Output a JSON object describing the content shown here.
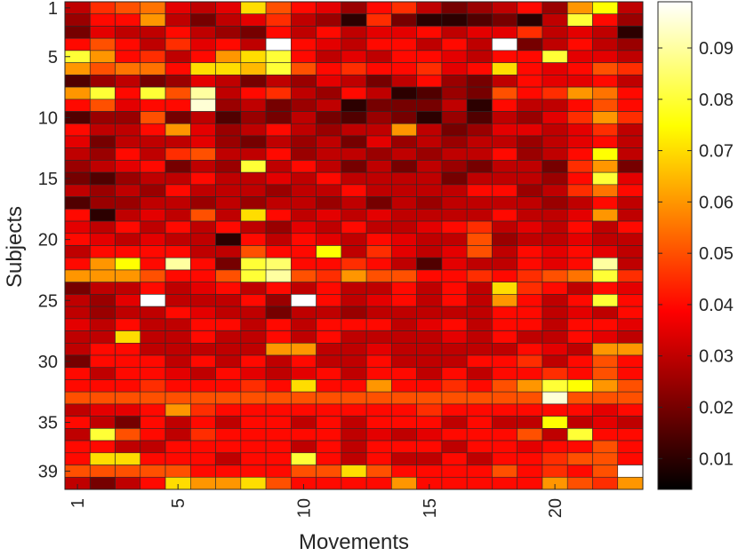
{
  "chart_data": {
    "type": "heatmap",
    "xlabel": "Movements",
    "ylabel": "Subjects",
    "x_ticks": [
      1,
      5,
      10,
      15,
      20
    ],
    "y_ticks": [
      1,
      5,
      10,
      15,
      20,
      25,
      30,
      35,
      39
    ],
    "n_cols": 23,
    "n_rows": 40,
    "colormap": "hot",
    "clim": [
      0.004,
      0.099
    ],
    "colorbar_ticks": [
      0.01,
      0.02,
      0.03,
      0.04,
      0.05,
      0.06,
      0.07,
      0.08,
      0.09
    ],
    "values": [
      [
        0.03,
        0.045,
        0.05,
        0.055,
        0.035,
        0.03,
        0.035,
        0.07,
        0.05,
        0.04,
        0.035,
        0.025,
        0.04,
        0.045,
        0.03,
        0.02,
        0.025,
        0.03,
        0.04,
        0.025,
        0.06,
        0.075,
        0.03
      ],
      [
        0.025,
        0.04,
        0.04,
        0.06,
        0.03,
        0.02,
        0.03,
        0.035,
        0.045,
        0.03,
        0.025,
        0.01,
        0.045,
        0.02,
        0.01,
        0.01,
        0.015,
        0.02,
        0.01,
        0.03,
        0.08,
        0.04,
        0.025
      ],
      [
        0.02,
        0.035,
        0.03,
        0.03,
        0.04,
        0.03,
        0.025,
        0.02,
        0.04,
        0.03,
        0.04,
        0.03,
        0.035,
        0.035,
        0.04,
        0.03,
        0.035,
        0.035,
        0.045,
        0.03,
        0.035,
        0.03,
        0.01
      ],
      [
        0.04,
        0.05,
        0.04,
        0.03,
        0.045,
        0.035,
        0.04,
        0.03,
        0.099,
        0.04,
        0.035,
        0.03,
        0.04,
        0.04,
        0.03,
        0.04,
        0.03,
        0.099,
        0.02,
        0.03,
        0.04,
        0.03,
        0.025
      ],
      [
        0.08,
        0.06,
        0.04,
        0.045,
        0.03,
        0.04,
        0.06,
        0.07,
        0.08,
        0.04,
        0.03,
        0.035,
        0.03,
        0.04,
        0.04,
        0.035,
        0.03,
        0.04,
        0.04,
        0.08,
        0.035,
        0.035,
        0.03
      ],
      [
        0.06,
        0.05,
        0.055,
        0.055,
        0.04,
        0.07,
        0.07,
        0.065,
        0.08,
        0.05,
        0.04,
        0.045,
        0.04,
        0.04,
        0.045,
        0.035,
        0.04,
        0.07,
        0.04,
        0.035,
        0.04,
        0.05,
        0.045
      ],
      [
        0.015,
        0.025,
        0.03,
        0.02,
        0.025,
        0.035,
        0.03,
        0.02,
        0.03,
        0.025,
        0.035,
        0.03,
        0.02,
        0.03,
        0.04,
        0.025,
        0.02,
        0.03,
        0.04,
        0.035,
        0.035,
        0.04,
        0.03
      ],
      [
        0.06,
        0.08,
        0.04,
        0.08,
        0.05,
        0.09,
        0.03,
        0.04,
        0.045,
        0.03,
        0.025,
        0.04,
        0.03,
        0.01,
        0.015,
        0.025,
        0.02,
        0.05,
        0.04,
        0.045,
        0.06,
        0.055,
        0.04
      ],
      [
        0.04,
        0.05,
        0.035,
        0.04,
        0.04,
        0.095,
        0.025,
        0.03,
        0.02,
        0.025,
        0.03,
        0.01,
        0.02,
        0.02,
        0.02,
        0.03,
        0.01,
        0.04,
        0.03,
        0.03,
        0.04,
        0.05,
        0.04
      ],
      [
        0.015,
        0.025,
        0.025,
        0.05,
        0.02,
        0.03,
        0.015,
        0.025,
        0.02,
        0.03,
        0.02,
        0.015,
        0.025,
        0.02,
        0.01,
        0.025,
        0.015,
        0.03,
        0.025,
        0.035,
        0.045,
        0.06,
        0.045
      ],
      [
        0.04,
        0.03,
        0.03,
        0.04,
        0.06,
        0.035,
        0.025,
        0.03,
        0.04,
        0.03,
        0.025,
        0.03,
        0.03,
        0.06,
        0.03,
        0.02,
        0.025,
        0.035,
        0.035,
        0.03,
        0.035,
        0.045,
        0.03
      ],
      [
        0.035,
        0.02,
        0.03,
        0.03,
        0.03,
        0.035,
        0.025,
        0.02,
        0.03,
        0.025,
        0.03,
        0.02,
        0.035,
        0.025,
        0.03,
        0.025,
        0.03,
        0.03,
        0.025,
        0.03,
        0.035,
        0.04,
        0.03
      ],
      [
        0.03,
        0.025,
        0.04,
        0.03,
        0.045,
        0.05,
        0.03,
        0.03,
        0.04,
        0.025,
        0.03,
        0.03,
        0.025,
        0.03,
        0.025,
        0.03,
        0.03,
        0.04,
        0.025,
        0.03,
        0.04,
        0.075,
        0.03
      ],
      [
        0.025,
        0.03,
        0.035,
        0.04,
        0.02,
        0.03,
        0.025,
        0.08,
        0.03,
        0.04,
        0.03,
        0.02,
        0.03,
        0.02,
        0.03,
        0.025,
        0.02,
        0.03,
        0.03,
        0.02,
        0.045,
        0.06,
        0.02
      ],
      [
        0.02,
        0.015,
        0.025,
        0.03,
        0.03,
        0.04,
        0.03,
        0.03,
        0.035,
        0.03,
        0.04,
        0.03,
        0.03,
        0.03,
        0.03,
        0.02,
        0.03,
        0.03,
        0.03,
        0.025,
        0.04,
        0.08,
        0.035
      ],
      [
        0.03,
        0.025,
        0.03,
        0.025,
        0.04,
        0.03,
        0.03,
        0.03,
        0.025,
        0.03,
        0.03,
        0.04,
        0.03,
        0.03,
        0.03,
        0.03,
        0.04,
        0.04,
        0.025,
        0.03,
        0.045,
        0.055,
        0.04
      ],
      [
        0.015,
        0.025,
        0.025,
        0.03,
        0.03,
        0.025,
        0.03,
        0.025,
        0.03,
        0.03,
        0.025,
        0.03,
        0.02,
        0.03,
        0.025,
        0.03,
        0.03,
        0.03,
        0.03,
        0.025,
        0.03,
        0.04,
        0.03
      ],
      [
        0.04,
        0.01,
        0.03,
        0.035,
        0.03,
        0.05,
        0.03,
        0.07,
        0.04,
        0.03,
        0.035,
        0.03,
        0.035,
        0.03,
        0.03,
        0.03,
        0.03,
        0.04,
        0.03,
        0.03,
        0.035,
        0.06,
        0.03
      ],
      [
        0.035,
        0.03,
        0.04,
        0.03,
        0.04,
        0.03,
        0.04,
        0.03,
        0.025,
        0.035,
        0.03,
        0.04,
        0.03,
        0.03,
        0.035,
        0.04,
        0.045,
        0.03,
        0.035,
        0.03,
        0.04,
        0.03,
        0.04
      ],
      [
        0.04,
        0.035,
        0.03,
        0.035,
        0.03,
        0.03,
        0.01,
        0.04,
        0.03,
        0.04,
        0.035,
        0.03,
        0.04,
        0.035,
        0.03,
        0.03,
        0.05,
        0.025,
        0.03,
        0.03,
        0.035,
        0.03,
        0.03
      ],
      [
        0.03,
        0.04,
        0.04,
        0.04,
        0.04,
        0.03,
        0.03,
        0.05,
        0.04,
        0.04,
        0.075,
        0.03,
        0.045,
        0.035,
        0.03,
        0.035,
        0.05,
        0.03,
        0.04,
        0.035,
        0.04,
        0.035,
        0.03
      ],
      [
        0.04,
        0.06,
        0.075,
        0.04,
        0.09,
        0.04,
        0.02,
        0.08,
        0.085,
        0.04,
        0.04,
        0.045,
        0.04,
        0.03,
        0.015,
        0.035,
        0.03,
        0.03,
        0.04,
        0.035,
        0.04,
        0.09,
        0.03
      ],
      [
        0.06,
        0.06,
        0.06,
        0.05,
        0.04,
        0.04,
        0.05,
        0.08,
        0.09,
        0.05,
        0.045,
        0.06,
        0.05,
        0.05,
        0.04,
        0.04,
        0.045,
        0.04,
        0.045,
        0.05,
        0.055,
        0.08,
        0.045
      ],
      [
        0.02,
        0.03,
        0.03,
        0.04,
        0.03,
        0.035,
        0.04,
        0.03,
        0.04,
        0.03,
        0.04,
        0.03,
        0.03,
        0.04,
        0.03,
        0.04,
        0.03,
        0.07,
        0.045,
        0.04,
        0.03,
        0.04,
        0.035
      ],
      [
        0.03,
        0.025,
        0.035,
        0.099,
        0.03,
        0.03,
        0.03,
        0.04,
        0.025,
        0.099,
        0.04,
        0.03,
        0.035,
        0.04,
        0.03,
        0.04,
        0.03,
        0.06,
        0.04,
        0.03,
        0.04,
        0.08,
        0.04
      ],
      [
        0.03,
        0.025,
        0.03,
        0.03,
        0.04,
        0.035,
        0.03,
        0.03,
        0.02,
        0.03,
        0.03,
        0.025,
        0.03,
        0.03,
        0.03,
        0.03,
        0.03,
        0.04,
        0.04,
        0.03,
        0.035,
        0.03,
        0.04
      ],
      [
        0.035,
        0.03,
        0.04,
        0.03,
        0.03,
        0.04,
        0.04,
        0.03,
        0.04,
        0.03,
        0.04,
        0.04,
        0.04,
        0.03,
        0.035,
        0.04,
        0.03,
        0.04,
        0.04,
        0.03,
        0.04,
        0.04,
        0.035
      ],
      [
        0.03,
        0.03,
        0.07,
        0.03,
        0.03,
        0.04,
        0.03,
        0.03,
        0.04,
        0.03,
        0.04,
        0.03,
        0.03,
        0.03,
        0.03,
        0.035,
        0.03,
        0.04,
        0.03,
        0.03,
        0.04,
        0.035,
        0.03
      ],
      [
        0.03,
        0.04,
        0.04,
        0.03,
        0.03,
        0.03,
        0.03,
        0.03,
        0.06,
        0.06,
        0.03,
        0.03,
        0.035,
        0.03,
        0.03,
        0.03,
        0.03,
        0.03,
        0.04,
        0.035,
        0.03,
        0.06,
        0.06
      ],
      [
        0.02,
        0.04,
        0.04,
        0.04,
        0.03,
        0.04,
        0.03,
        0.04,
        0.03,
        0.04,
        0.03,
        0.03,
        0.04,
        0.03,
        0.03,
        0.03,
        0.04,
        0.04,
        0.045,
        0.03,
        0.04,
        0.05,
        0.04
      ],
      [
        0.04,
        0.03,
        0.04,
        0.04,
        0.035,
        0.03,
        0.04,
        0.035,
        0.03,
        0.035,
        0.04,
        0.03,
        0.04,
        0.04,
        0.03,
        0.04,
        0.03,
        0.04,
        0.04,
        0.045,
        0.04,
        0.05,
        0.04
      ],
      [
        0.04,
        0.04,
        0.04,
        0.045,
        0.04,
        0.04,
        0.04,
        0.045,
        0.04,
        0.07,
        0.04,
        0.04,
        0.06,
        0.04,
        0.04,
        0.045,
        0.04,
        0.05,
        0.06,
        0.08,
        0.075,
        0.06,
        0.05
      ],
      [
        0.05,
        0.05,
        0.05,
        0.05,
        0.05,
        0.05,
        0.05,
        0.05,
        0.05,
        0.05,
        0.05,
        0.05,
        0.05,
        0.05,
        0.05,
        0.05,
        0.05,
        0.05,
        0.05,
        0.095,
        0.05,
        0.05,
        0.05
      ],
      [
        0.03,
        0.035,
        0.035,
        0.04,
        0.06,
        0.045,
        0.04,
        0.04,
        0.04,
        0.04,
        0.04,
        0.04,
        0.04,
        0.04,
        0.045,
        0.04,
        0.04,
        0.04,
        0.04,
        0.04,
        0.04,
        0.035,
        0.04
      ],
      [
        0.04,
        0.03,
        0.02,
        0.04,
        0.03,
        0.04,
        0.03,
        0.04,
        0.04,
        0.03,
        0.04,
        0.03,
        0.04,
        0.04,
        0.04,
        0.03,
        0.04,
        0.03,
        0.03,
        0.075,
        0.03,
        0.035,
        0.03
      ],
      [
        0.03,
        0.08,
        0.05,
        0.04,
        0.03,
        0.045,
        0.04,
        0.04,
        0.04,
        0.04,
        0.04,
        0.03,
        0.035,
        0.03,
        0.035,
        0.04,
        0.04,
        0.04,
        0.05,
        0.03,
        0.08,
        0.04,
        0.04
      ],
      [
        0.04,
        0.04,
        0.03,
        0.03,
        0.04,
        0.04,
        0.04,
        0.04,
        0.04,
        0.03,
        0.04,
        0.03,
        0.04,
        0.04,
        0.04,
        0.03,
        0.04,
        0.04,
        0.035,
        0.04,
        0.04,
        0.05,
        0.04
      ],
      [
        0.04,
        0.07,
        0.07,
        0.04,
        0.04,
        0.04,
        0.03,
        0.04,
        0.04,
        0.08,
        0.04,
        0.03,
        0.04,
        0.03,
        0.03,
        0.04,
        0.03,
        0.04,
        0.04,
        0.045,
        0.05,
        0.05,
        0.04
      ],
      [
        0.05,
        0.05,
        0.05,
        0.05,
        0.05,
        0.04,
        0.04,
        0.04,
        0.04,
        0.05,
        0.05,
        0.07,
        0.05,
        0.04,
        0.04,
        0.04,
        0.04,
        0.05,
        0.04,
        0.045,
        0.04,
        0.05,
        0.099
      ],
      [
        0.03,
        0.02,
        0.03,
        0.04,
        0.07,
        0.06,
        0.06,
        0.07,
        0.05,
        0.04,
        0.04,
        0.04,
        0.04,
        0.06,
        0.04,
        0.04,
        0.04,
        0.04,
        0.04,
        0.06,
        0.05,
        0.045,
        0.06
      ]
    ]
  }
}
